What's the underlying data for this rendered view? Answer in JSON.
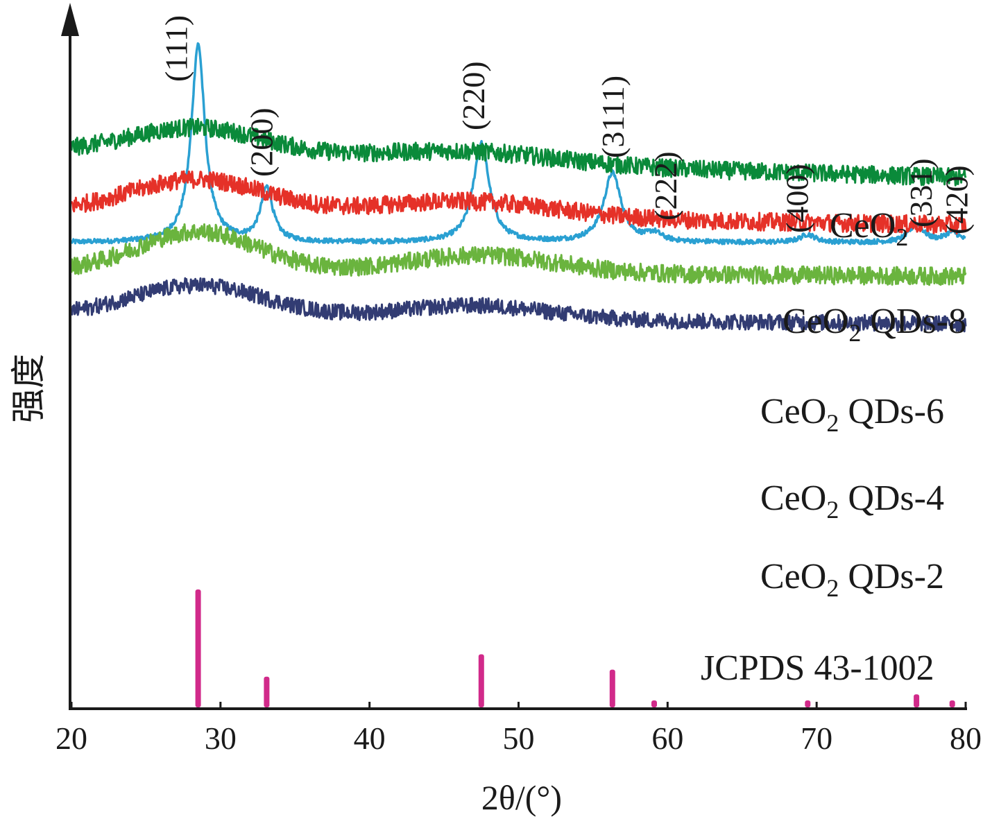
{
  "chart_data": {
    "type": "line",
    "xlabel": "2θ/(°)",
    "ylabel": "强度",
    "xlim": [
      20,
      80
    ],
    "x_ticks": [
      20,
      30,
      40,
      50,
      60,
      70,
      80
    ],
    "x_tick_labels": [
      "20",
      "30",
      "40",
      "50",
      "60",
      "70",
      "80"
    ],
    "y_ticks_shown": false,
    "grid": false,
    "series": [
      {
        "name": "CeO2",
        "label_main": "CeO",
        "label_sub": "2",
        "label_suffix": "",
        "color": "#2aa0d2",
        "kind": "crystalline",
        "baseline": 0.0,
        "peaks": [
          {
            "x": 28.5,
            "height": 1.0,
            "width": 0.55
          },
          {
            "x": 33.1,
            "height": 0.27,
            "width": 0.5
          },
          {
            "x": 47.5,
            "height": 0.5,
            "width": 0.65
          },
          {
            "x": 56.3,
            "height": 0.35,
            "width": 0.7
          },
          {
            "x": 59.1,
            "height": 0.04,
            "width": 0.6
          },
          {
            "x": 69.4,
            "height": 0.04,
            "width": 0.6
          },
          {
            "x": 76.7,
            "height": 0.09,
            "width": 0.6
          },
          {
            "x": 79.1,
            "height": 0.05,
            "width": 0.6
          }
        ],
        "noise": 0.012
      },
      {
        "name": "CeO2 QDs-8",
        "label_main": "CeO",
        "label_sub": "2",
        "label_suffix": " QDs-8",
        "color": "#0a8a3a",
        "kind": "amorphous",
        "baseline_start": 0.46,
        "baseline_end": 0.33,
        "humps": [
          {
            "x": 28.5,
            "height": 0.14,
            "width": 4.5
          },
          {
            "x": 46.5,
            "height": 0.06,
            "width": 6.0
          }
        ],
        "noise": 0.045
      },
      {
        "name": "CeO2 QDs-6",
        "label_main": "CeO",
        "label_sub": "2",
        "label_suffix": " QDs-6",
        "color": "#e53128",
        "kind": "amorphous",
        "baseline_start": 0.16,
        "baseline_end": 0.09,
        "humps": [
          {
            "x": 28.5,
            "height": 0.17,
            "width": 4.5
          },
          {
            "x": 46.5,
            "height": 0.08,
            "width": 6.0
          }
        ],
        "noise": 0.045
      },
      {
        "name": "CeO2 QDs-4",
        "label_main": "CeO",
        "label_sub": "2",
        "label_suffix": " QDs-4",
        "color": "#6ab43e",
        "kind": "amorphous",
        "baseline_start": -0.14,
        "baseline_end": -0.17,
        "humps": [
          {
            "x": 28.5,
            "height": 0.2,
            "width": 4.0
          },
          {
            "x": 47.5,
            "height": 0.09,
            "width": 5.0
          }
        ],
        "noise": 0.045
      },
      {
        "name": "CeO2 QDs-2",
        "label_main": "CeO",
        "label_sub": "2",
        "label_suffix": " QDs-2",
        "color": "#323c73",
        "kind": "amorphous",
        "baseline_start": -0.37,
        "baseline_end": -0.41,
        "humps": [
          {
            "x": 28.5,
            "height": 0.16,
            "width": 4.5
          },
          {
            "x": 47.0,
            "height": 0.07,
            "width": 5.0
          }
        ],
        "noise": 0.04
      }
    ],
    "reference": {
      "name": "JCPDS 43-1002",
      "color": "#d12a8a",
      "lines": [
        {
          "x": 28.5,
          "intensity": 100
        },
        {
          "x": 33.1,
          "intensity": 26
        },
        {
          "x": 47.5,
          "intensity": 45
        },
        {
          "x": 56.3,
          "intensity": 32
        },
        {
          "x": 59.1,
          "intensity": 4
        },
        {
          "x": 69.4,
          "intensity": 4
        },
        {
          "x": 76.7,
          "intensity": 11
        },
        {
          "x": 79.1,
          "intensity": 5
        }
      ]
    },
    "peak_labels": [
      {
        "text": "(111)",
        "x": 28.5
      },
      {
        "text": "(200)",
        "x": 33.1
      },
      {
        "text": "(220)",
        "x": 47.5
      },
      {
        "text": "(3111)",
        "x": 56.3
      },
      {
        "text": "(222)",
        "x": 59.1
      },
      {
        "text": "(400)",
        "x": 69.4
      },
      {
        "text": "(331)",
        "x": 76.7
      },
      {
        "text": "(420)",
        "x": 79.1
      }
    ]
  }
}
